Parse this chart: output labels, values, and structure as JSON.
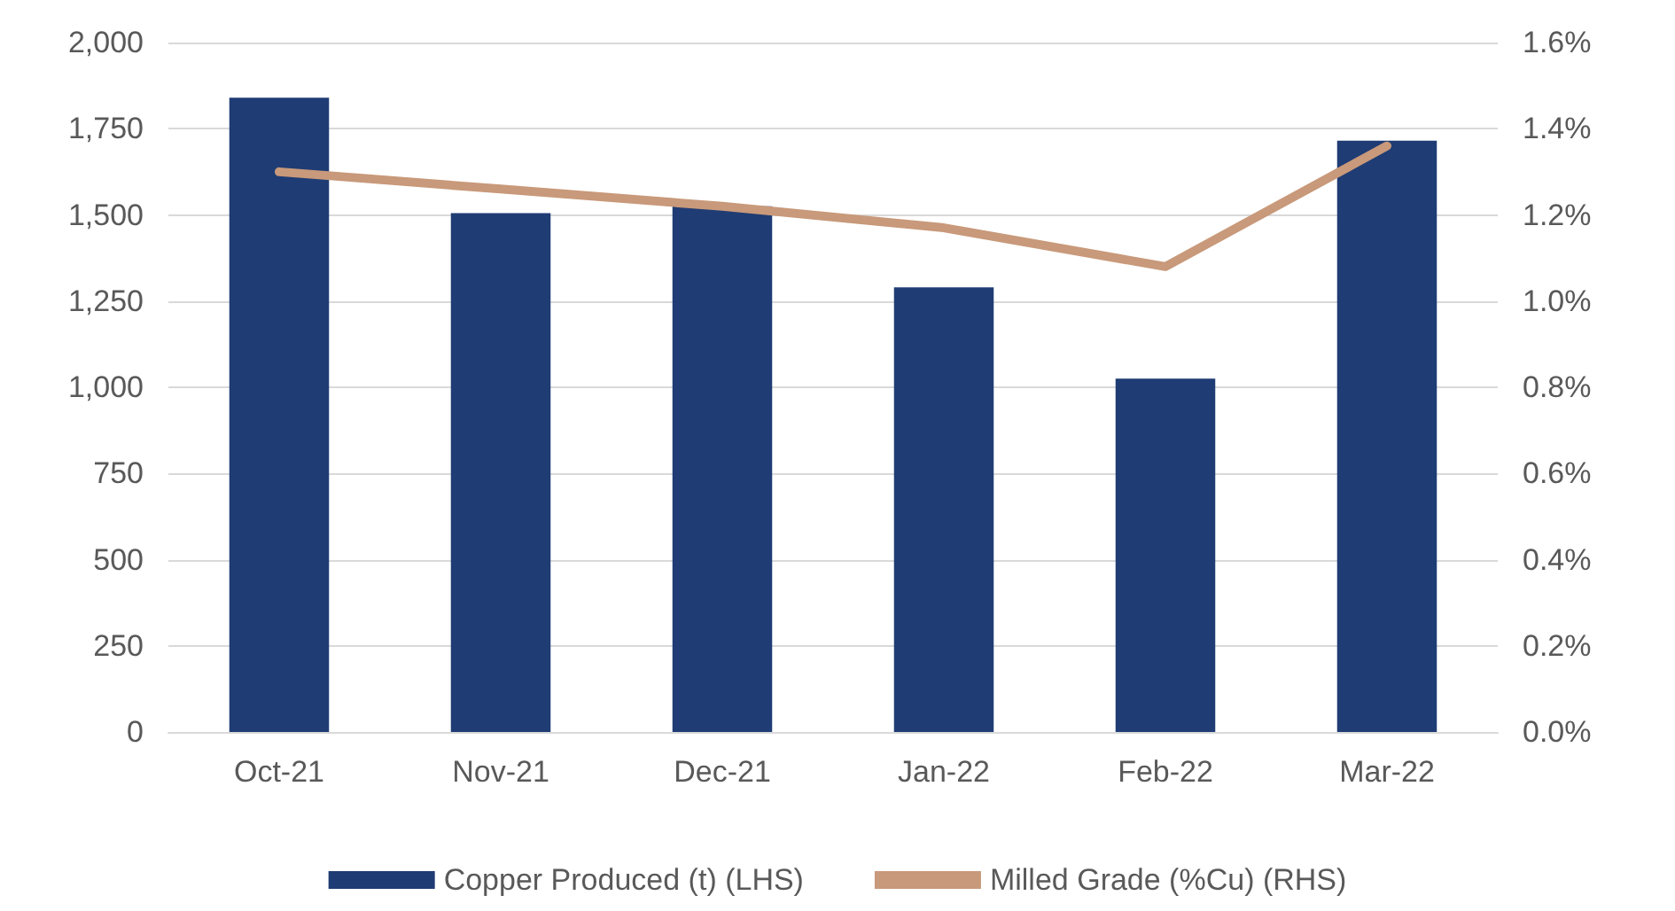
{
  "chart_data": {
    "type": "bar",
    "categories": [
      "Oct-21",
      "Nov-21",
      "Dec-21",
      "Jan-22",
      "Feb-22",
      "Mar-22"
    ],
    "series": [
      {
        "name": "Copper Produced (t) (LHS)",
        "color": "#1f3c74",
        "values": [
          1840,
          1505,
          1525,
          1290,
          1025,
          1715
        ]
      },
      {
        "name": "Milled Grade (%Cu) (RHS)",
        "type": "line",
        "axis": "y2",
        "color": "#c8997a",
        "values": [
          1.3,
          1.26,
          1.22,
          1.17,
          1.08,
          1.36
        ]
      }
    ],
    "ylim": [
      0,
      2000
    ],
    "yticks": [
      {
        "value": 0,
        "label": "0"
      },
      {
        "value": 250,
        "label": "250"
      },
      {
        "value": 500,
        "label": "500"
      },
      {
        "value": 750,
        "label": "750"
      },
      {
        "value": 1000,
        "label": "1,000"
      },
      {
        "value": 1250,
        "label": "1,250"
      },
      {
        "value": 1500,
        "label": "1,500"
      },
      {
        "value": 1750,
        "label": "1,750"
      },
      {
        "value": 2000,
        "label": "2,000"
      }
    ],
    "y2lim": [
      0,
      1.6
    ],
    "y2ticks": [
      {
        "value": 0,
        "label": "0.0%"
      },
      {
        "value": 0.2,
        "label": "0.2%"
      },
      {
        "value": 0.4,
        "label": "0.4%"
      },
      {
        "value": 0.6,
        "label": "0.6%"
      },
      {
        "value": 0.8,
        "label": "0.8%"
      },
      {
        "value": 1.0,
        "label": "1.0%"
      },
      {
        "value": 1.2,
        "label": "1.2%"
      },
      {
        "value": 1.4,
        "label": "1.4%"
      },
      {
        "value": 1.6,
        "label": "1.6%"
      }
    ],
    "grid": "y",
    "legend": "bottom",
    "marker": "none"
  }
}
